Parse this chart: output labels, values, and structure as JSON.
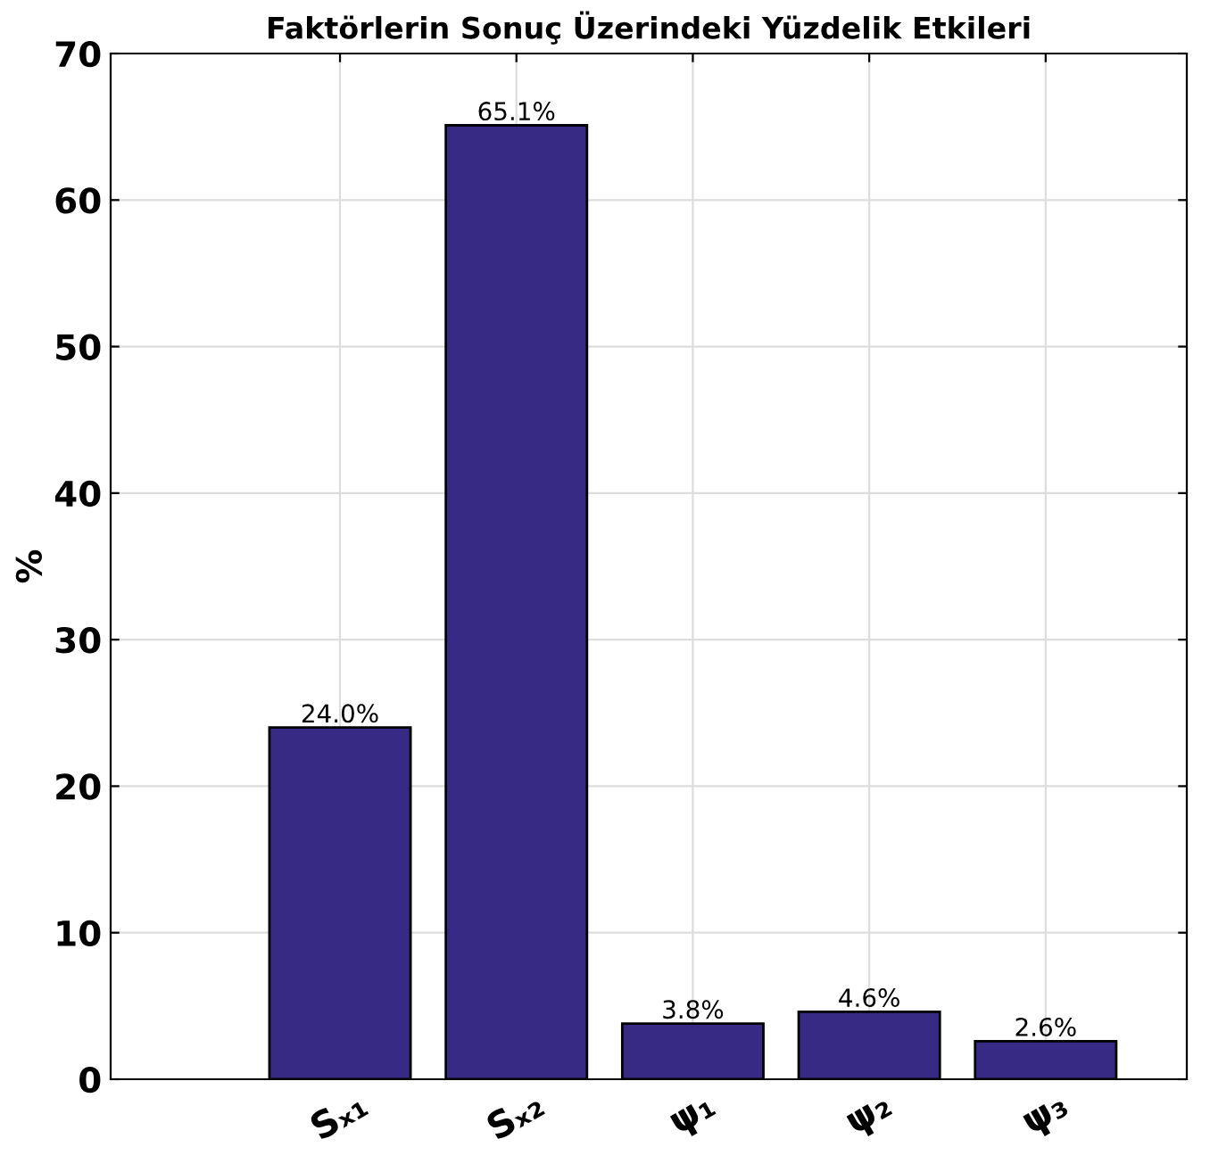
{
  "chart_data": {
    "type": "bar",
    "title": "Faktörlerin Sonuç Üzerindeki Yüzdelik Etkileri",
    "ylabel": "%",
    "categories": [
      "Sₓ₁",
      "Sₓ₂",
      "ψ₁",
      "ψ₂",
      "ψ₃"
    ],
    "values": [
      24.0,
      65.1,
      3.8,
      4.6,
      2.6
    ],
    "value_labels": [
      "24.0%",
      "65.1%",
      "3.8%",
      "4.6%",
      "2.6%"
    ],
    "color": "#372a84",
    "ylim": [
      0,
      70
    ],
    "yticks": [
      0,
      10,
      20,
      30,
      40,
      50,
      60,
      70
    ],
    "grid": true
  }
}
